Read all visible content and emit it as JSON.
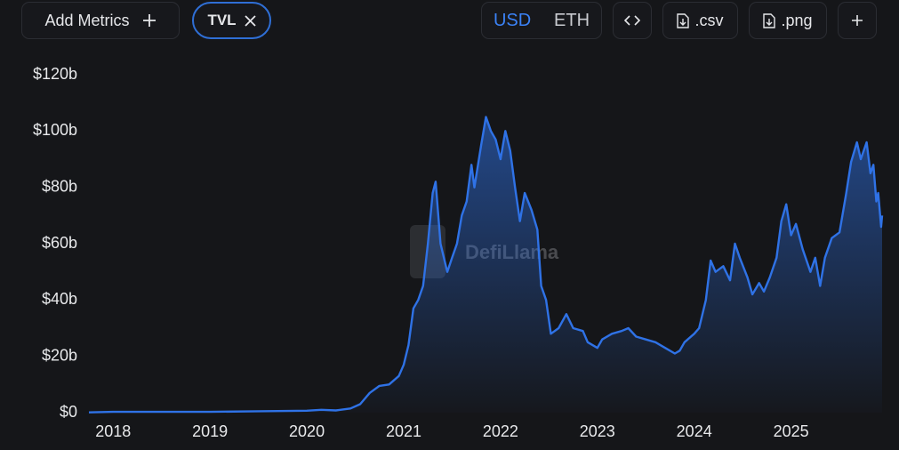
{
  "toolbar": {
    "add_metrics": "Add Metrics",
    "metric": "TVL",
    "currencies": [
      "USD",
      "ETH"
    ],
    "downloads": [
      ".csv",
      ".png"
    ]
  },
  "watermark": "DefiLlama",
  "chart_data": {
    "type": "area",
    "color": "#2f72e6",
    "grid": false,
    "xlim": [
      2017.75,
      2025.94
    ],
    "xticks": [
      2018,
      2019,
      2020,
      2021,
      2022,
      2023,
      2024,
      2025
    ],
    "ylim": [
      0,
      120
    ],
    "yticks": [
      {
        "value": 0,
        "label": "$0"
      },
      {
        "value": 20,
        "label": "$20b"
      },
      {
        "value": 40,
        "label": "$40b"
      },
      {
        "value": 60,
        "label": "$60b"
      },
      {
        "value": 80,
        "label": "$80b"
      },
      {
        "value": 100,
        "label": "$100b"
      },
      {
        "value": 120,
        "label": "$120b"
      }
    ],
    "x": [
      2017.75,
      2018.0,
      2018.5,
      2019.0,
      2019.5,
      2020.0,
      2020.15,
      2020.3,
      2020.45,
      2020.55,
      2020.65,
      2020.75,
      2020.85,
      2020.95,
      2021.0,
      2021.05,
      2021.1,
      2021.15,
      2021.2,
      2021.25,
      2021.3,
      2021.33,
      2021.38,
      2021.45,
      2021.5,
      2021.55,
      2021.6,
      2021.65,
      2021.7,
      2021.73,
      2021.8,
      2021.85,
      2021.9,
      2021.95,
      2022.0,
      2022.05,
      2022.1,
      2022.15,
      2022.2,
      2022.25,
      2022.32,
      2022.38,
      2022.42,
      2022.47,
      2022.52,
      2022.6,
      2022.68,
      2022.75,
      2022.85,
      2022.9,
      2023.0,
      2023.05,
      2023.15,
      2023.25,
      2023.32,
      2023.4,
      2023.5,
      2023.6,
      2023.7,
      2023.8,
      2023.85,
      2023.9,
      2024.0,
      2024.05,
      2024.12,
      2024.17,
      2024.22,
      2024.3,
      2024.37,
      2024.42,
      2024.47,
      2024.55,
      2024.6,
      2024.67,
      2024.72,
      2024.78,
      2024.85,
      2024.9,
      2024.95,
      2025.0,
      2025.05,
      2025.12,
      2025.2,
      2025.25,
      2025.3,
      2025.35,
      2025.42,
      2025.5,
      2025.57,
      2025.62,
      2025.68,
      2025.72,
      2025.78,
      2025.82,
      2025.85,
      2025.88,
      2025.9,
      2025.93,
      2025.94
    ],
    "series": [
      {
        "name": "TVL",
        "color": "#2f72e6",
        "values": [
          0.1,
          0.3,
          0.3,
          0.3,
          0.5,
          0.7,
          1.0,
          0.8,
          1.5,
          3,
          7,
          9.5,
          10,
          13,
          17,
          24,
          37,
          40,
          45,
          60,
          78,
          82,
          60,
          50,
          55,
          60,
          70,
          75,
          88,
          80,
          95,
          105,
          100,
          97,
          90,
          100,
          93,
          80,
          68,
          78,
          72,
          65,
          45,
          40,
          28,
          30,
          35,
          30,
          29,
          25,
          23,
          26,
          28,
          29,
          30,
          27,
          26,
          25,
          23,
          21,
          22,
          25,
          28,
          30,
          40,
          54,
          50,
          52,
          47,
          60,
          55,
          48,
          42,
          46,
          43,
          48,
          55,
          68,
          74,
          63,
          67,
          58,
          50,
          55,
          45,
          55,
          62,
          64,
          78,
          89,
          96,
          90,
          96,
          85,
          88,
          75,
          78,
          66,
          70
        ]
      }
    ]
  }
}
